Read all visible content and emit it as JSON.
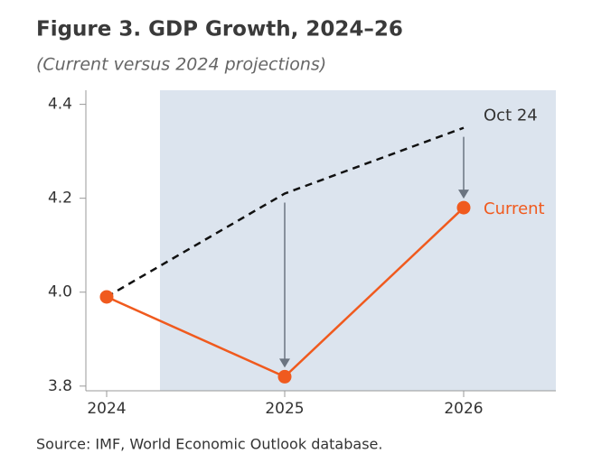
{
  "chart_data": {
    "type": "line",
    "title": "Figure 3. GDP Growth, 2024–26",
    "subtitle": "(Current versus  2024 projections)",
    "source": "Source: IMF, World Economic Outlook database.",
    "categories": [
      "2024",
      "2025",
      "2026"
    ],
    "series": [
      {
        "name": "Oct 24",
        "color": "#111111",
        "dashed": true,
        "markers": false,
        "values": [
          3.99,
          4.21,
          4.35
        ]
      },
      {
        "name": "Current",
        "color": "#f05a1e",
        "dashed": false,
        "markers": true,
        "values": [
          3.99,
          3.82,
          4.18
        ]
      }
    ],
    "ylim": [
      3.79,
      4.43
    ],
    "yticks": [
      3.8,
      {
        "value": 4,
        "label": "4.0"
      },
      4.2,
      4.4
    ]
  }
}
